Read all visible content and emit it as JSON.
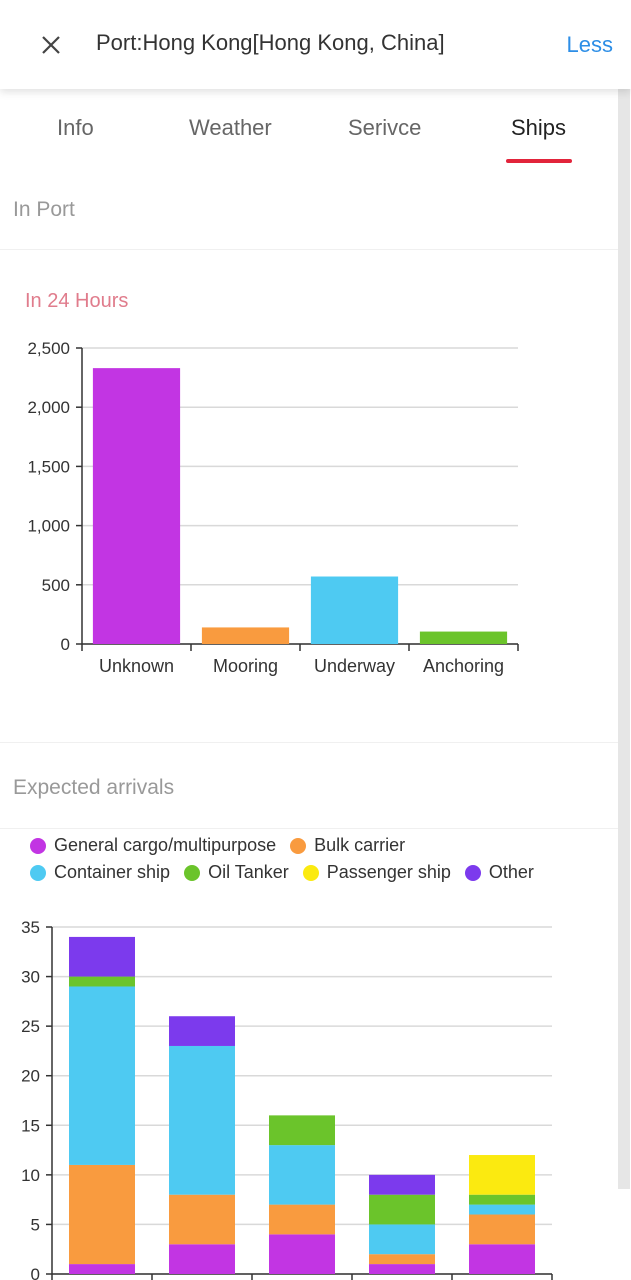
{
  "header": {
    "title": "Port:Hong Kong[Hong Kong, China]",
    "less_label": "Less"
  },
  "tabs": [
    {
      "label": "Info",
      "active": false
    },
    {
      "label": "Weather",
      "active": false
    },
    {
      "label": "Serivce",
      "active": false
    },
    {
      "label": "Ships",
      "active": true
    }
  ],
  "in_port": {
    "title": "In Port",
    "subtitle": "In 24 Hours"
  },
  "expected": {
    "title": "Expected arrivals"
  },
  "colors": {
    "accent": "#2d8ee6",
    "tab_underline": "#e2243b",
    "subtitle": "#e07c8c"
  },
  "chart_data": [
    {
      "type": "bar",
      "categories": [
        "Unknown",
        "Mooring",
        "Underway",
        "Anchoring"
      ],
      "values": [
        2330,
        140,
        570,
        105
      ],
      "colors": [
        "#c235e3",
        "#f99b3f",
        "#4ecaf2",
        "#6bc42b"
      ],
      "ylim": [
        0,
        2500
      ],
      "yticks": [
        "0",
        "500",
        "1,000",
        "1,500",
        "2,000",
        "2,500"
      ],
      "ytick_values": [
        0,
        500,
        1000,
        1500,
        2000,
        2500
      ],
      "grid": true
    },
    {
      "type": "bar",
      "stacked": true,
      "categories": [
        "",
        "",
        "",
        "",
        ""
      ],
      "series": [
        {
          "name": "General cargo/multipurpose",
          "color": "#c235e3",
          "values": [
            1,
            3,
            4,
            1,
            3
          ]
        },
        {
          "name": "Bulk carrier",
          "color": "#f99b3f",
          "values": [
            10,
            5,
            3,
            1,
            3
          ]
        },
        {
          "name": "Container ship",
          "color": "#4ecaf2",
          "values": [
            18,
            15,
            6,
            3,
            1
          ]
        },
        {
          "name": "Oil Tanker",
          "color": "#6bc42b",
          "values": [
            1,
            0,
            3,
            3,
            1
          ]
        },
        {
          "name": "Passenger ship",
          "color": "#fbea10",
          "values": [
            0,
            0,
            0,
            0,
            4
          ]
        },
        {
          "name": "Other",
          "color": "#7c3aed",
          "values": [
            4,
            3,
            0,
            2,
            0
          ]
        }
      ],
      "ylim": [
        0,
        35
      ],
      "yticks": [
        "0",
        "5",
        "10",
        "15",
        "20",
        "25",
        "30",
        "35"
      ],
      "ytick_values": [
        0,
        5,
        10,
        15,
        20,
        25,
        30,
        35
      ],
      "legend": "top",
      "grid": true
    }
  ]
}
